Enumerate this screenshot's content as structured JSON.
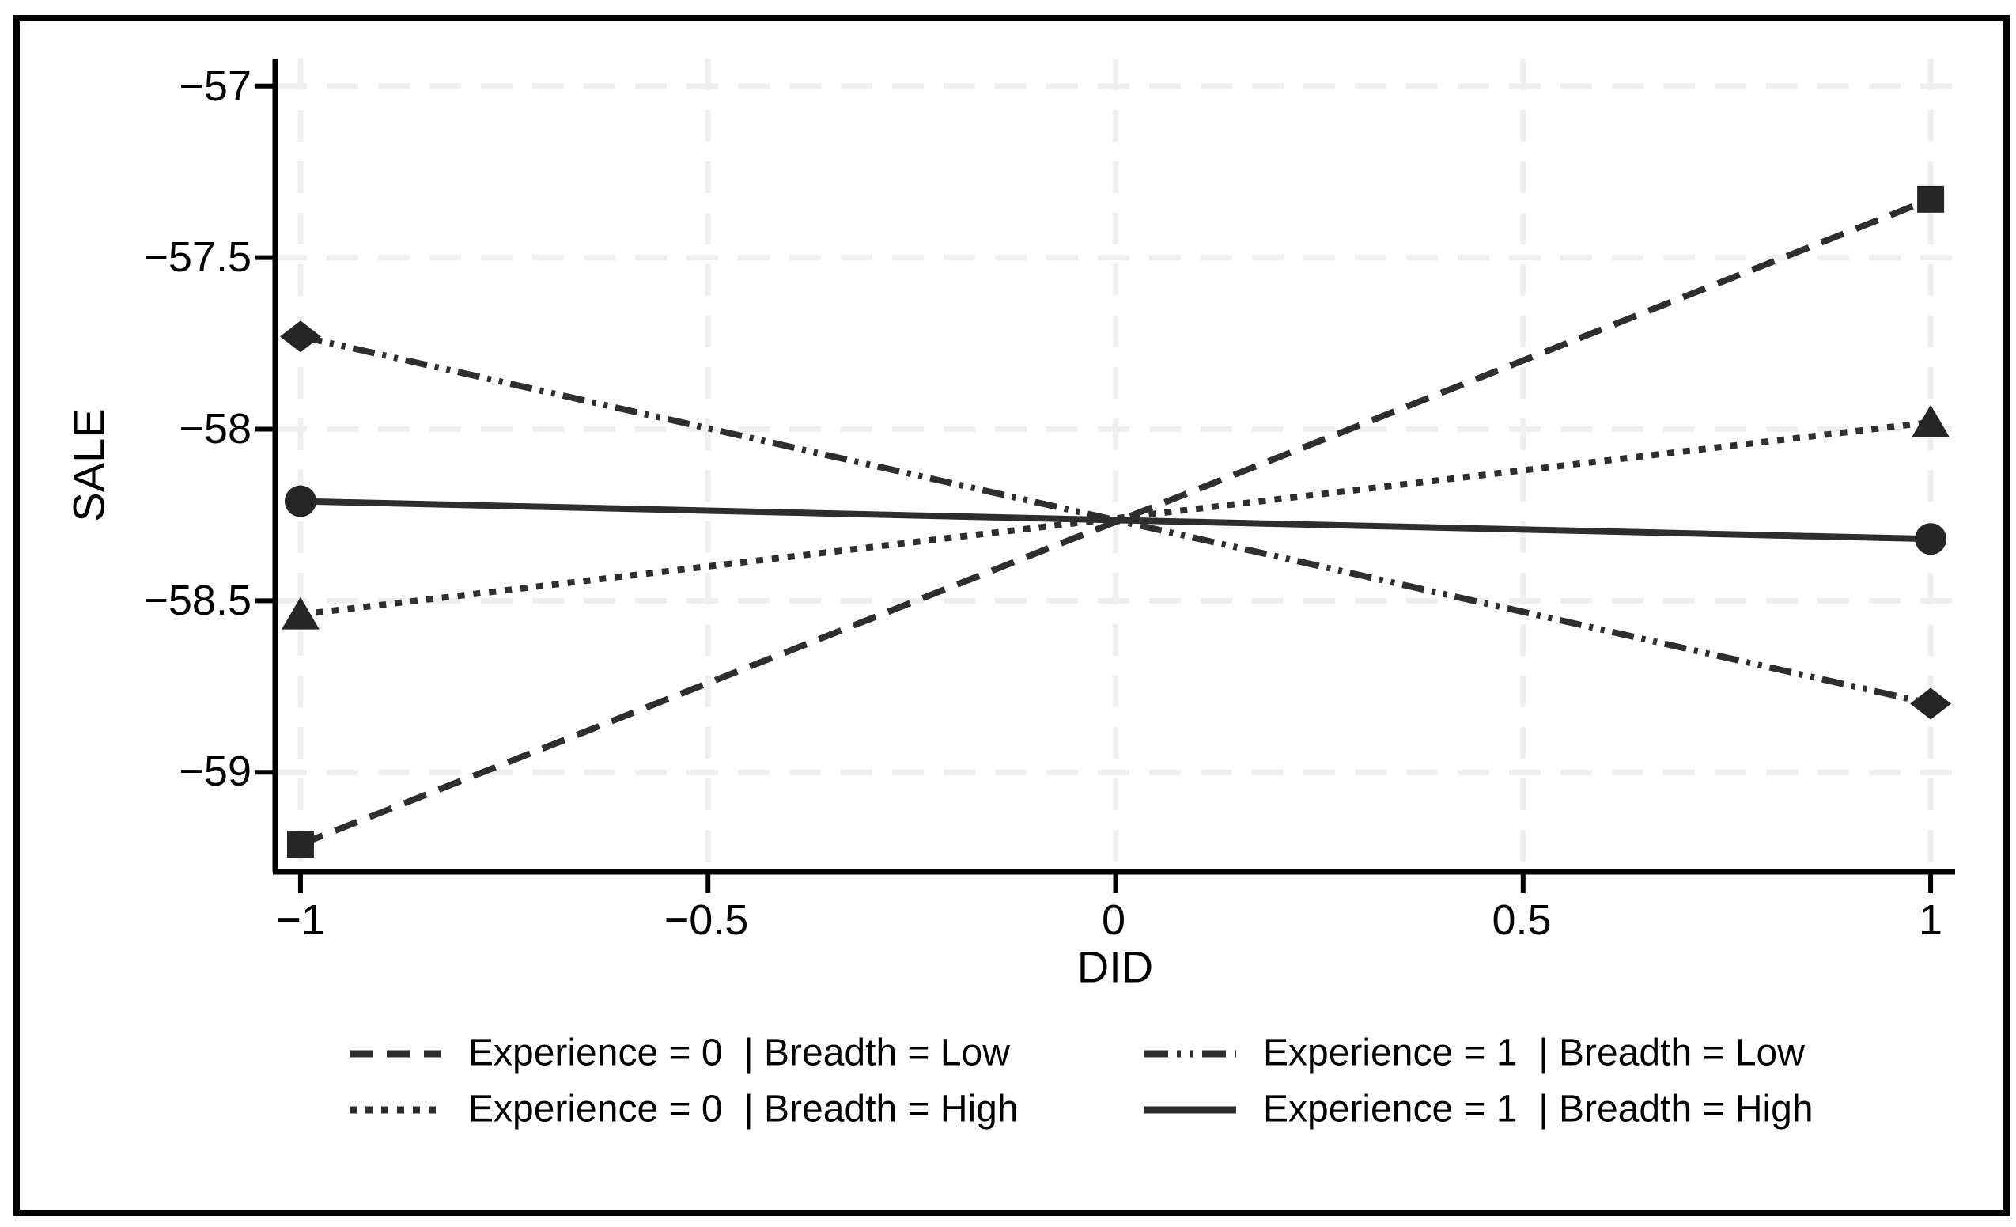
{
  "figure": {
    "background": "#ffffff",
    "frame_color": "#000000"
  },
  "chart_data": {
    "type": "line",
    "title": "",
    "xlabel": "DID",
    "ylabel": "SALE",
    "grid": true,
    "legend_position": "bottom",
    "x_domain": [
      -1.031,
      1.03
    ],
    "y_domain": [
      -59.29,
      -56.92
    ],
    "x_ticks": [
      {
        "value": -1,
        "label": "−1"
      },
      {
        "value": -0.5,
        "label": "−0.5"
      },
      {
        "value": 0,
        "label": "0"
      },
      {
        "value": 0.5,
        "label": "0.5"
      },
      {
        "value": 1,
        "label": "1"
      }
    ],
    "y_ticks": [
      {
        "value": -57,
        "label": "−57"
      },
      {
        "value": -57.5,
        "label": "−57.5"
      },
      {
        "value": -58,
        "label": "−58"
      },
      {
        "value": -58.5,
        "label": "−58.5"
      },
      {
        "value": -59,
        "label": "−59"
      }
    ],
    "series": [
      {
        "name": "Experience = 0  | Breadth = Low",
        "line_style": "dash",
        "marker": "square",
        "points": [
          [
            -1,
            -59.21
          ],
          [
            1,
            -57.33
          ]
        ]
      },
      {
        "name": "Experience = 0  | Breadth = High",
        "line_style": "dot",
        "marker": "triangle",
        "points": [
          [
            -1,
            -58.54
          ],
          [
            1,
            -57.98
          ]
        ]
      },
      {
        "name": "Experience = 1  | Breadth = Low",
        "line_style": "dash-dot-dot",
        "marker": "diamond",
        "points": [
          [
            -1,
            -57.73
          ],
          [
            1,
            -58.8
          ]
        ]
      },
      {
        "name": "Experience = 1  | Breadth = High",
        "line_style": "solid",
        "marker": "circle",
        "points": [
          [
            -1,
            -58.21
          ],
          [
            1,
            -58.32
          ]
        ]
      }
    ],
    "colors": {
      "line": "#2e2e2e",
      "marker": "#262626",
      "grid": "#efefef",
      "axis": "#000000",
      "text": "#000000"
    }
  },
  "legend": {
    "items": [
      {
        "label": "Experience = 0  | Breadth = Low",
        "line_style": "dash"
      },
      {
        "label": "Experience = 0  | Breadth = High",
        "line_style": "dot"
      },
      {
        "label": "Experience = 1  | Breadth = Low",
        "line_style": "dash-dot-dot"
      },
      {
        "label": "Experience = 1  | Breadth = High",
        "line_style": "solid"
      }
    ]
  }
}
